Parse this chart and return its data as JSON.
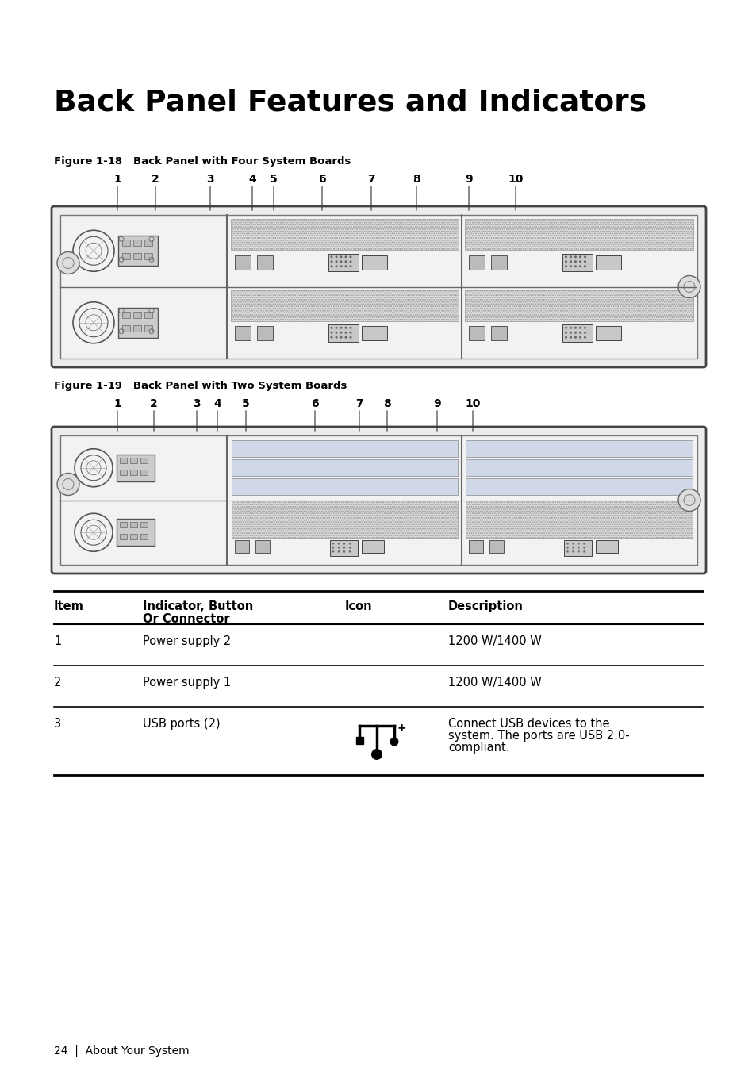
{
  "title": "Back Panel Features and Indicators",
  "fig1_caption": "Figure 1-18   Back Panel with Four System Boards",
  "fig2_caption": "Figure 1-19   Back Panel with Two System Boards",
  "fig1_num_labels": [
    "1",
    "2",
    "3",
    "4",
    "5",
    "6",
    "7",
    "8",
    "9",
    "10"
  ],
  "fig2_num_labels": [
    "1",
    "2",
    "3",
    "4",
    "5",
    "6",
    "7",
    "8",
    "9",
    "10"
  ],
  "table_col_headers": [
    "Item",
    "Indicator, Button\nOr Connector",
    "Icon",
    "Description"
  ],
  "table_rows": [
    [
      "1",
      "Power supply 2",
      "",
      "1200 W/1400 W"
    ],
    [
      "2",
      "Power supply 1",
      "",
      "1200 W/1400 W"
    ],
    [
      "3",
      "USB ports (2)",
      "USB_ICON",
      "Connect USB devices to the\nsystem. The ports are USB 2.0-\ncompliant."
    ]
  ],
  "footer_text": "24  |  About Your System",
  "bg_color": "#ffffff",
  "text_color": "#000000",
  "panel_border": "#444444",
  "panel_fill": "#f5f5f5",
  "panel_dark": "#cccccc",
  "panel_mid": "#dddddd",
  "hatch_fill": "#e8e8e8"
}
